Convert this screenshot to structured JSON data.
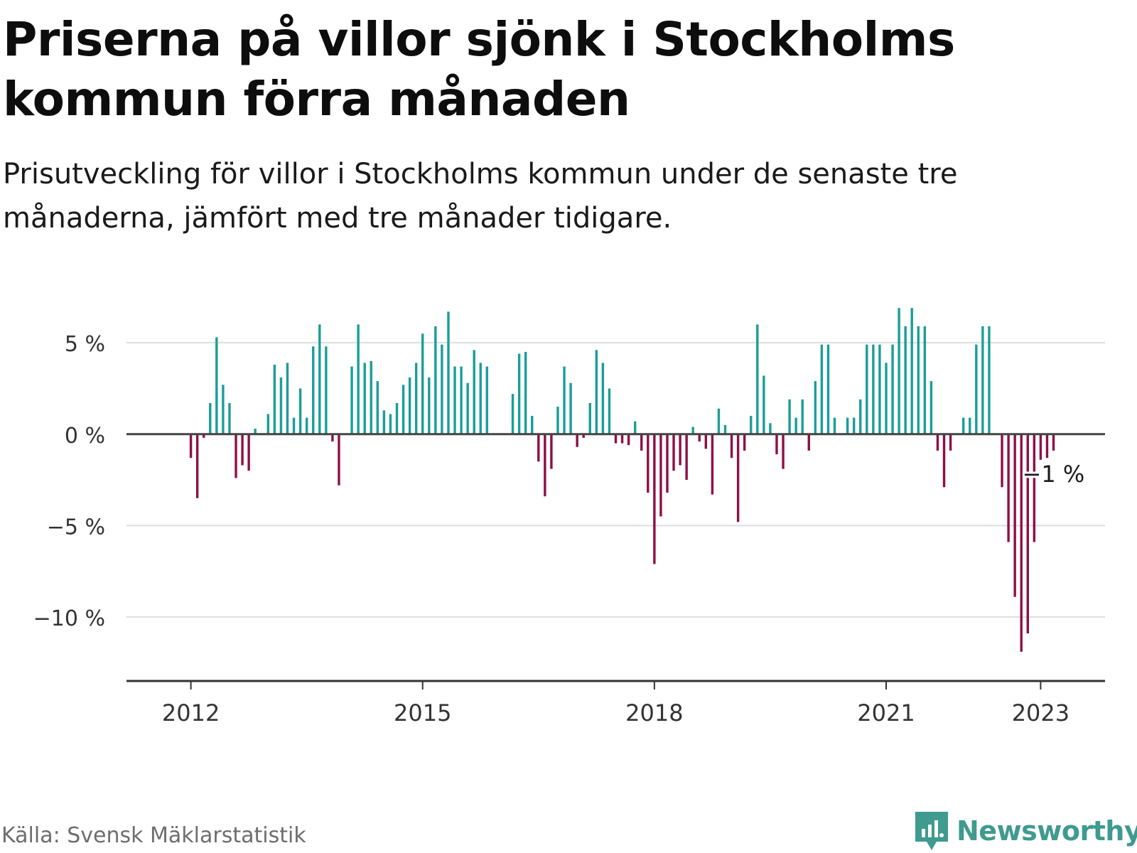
{
  "title": "Priserna på villor sjönk i Stockholms kommun förra månaden",
  "subtitle": "Prisutveckling för villor i Stockholms kommun under de senaste tre månaderna, jämfört med tre månader tidigare.",
  "source": "Källa: Svensk Mäklarstatistik",
  "logo": {
    "name": "Newsworthy",
    "icon": "newsworthy-bar-chart-icon",
    "color": "#3f9a8f"
  },
  "chart_data": {
    "type": "bar",
    "x_unit": "month",
    "y_unit": "%",
    "ylim": [
      -13.5,
      8
    ],
    "xlim": [
      "2011-03",
      "2023-11"
    ],
    "yticks": [
      {
        "value": 5,
        "label": "5 %"
      },
      {
        "value": 0,
        "label": "0 %"
      },
      {
        "value": -5,
        "label": "−5 %"
      },
      {
        "value": -10,
        "label": "−10 %"
      }
    ],
    "xticks": [
      {
        "date": "2012-01",
        "label": "2012"
      },
      {
        "date": "2015-01",
        "label": "2015"
      },
      {
        "date": "2018-01",
        "label": "2018"
      },
      {
        "date": "2021-01",
        "label": "2021"
      },
      {
        "date": "2023-01",
        "label": "2023"
      }
    ],
    "grid": true,
    "colors": {
      "positive": "#1a9e96",
      "negative": "#8e0f46",
      "zero_line": "#444444",
      "grid": "#dddddd",
      "axis": "#333333"
    },
    "annotation": {
      "date": "2023-03",
      "value": -0.9,
      "label": "−1 %"
    },
    "data": [
      [
        "2012-01",
        -1.3
      ],
      [
        "2012-02",
        -3.5
      ],
      [
        "2012-03",
        -0.2
      ],
      [
        "2012-04",
        1.7
      ],
      [
        "2012-05",
        5.3
      ],
      [
        "2012-06",
        2.7
      ],
      [
        "2012-07",
        1.7
      ],
      [
        "2012-08",
        -2.4
      ],
      [
        "2012-09",
        -1.7
      ],
      [
        "2012-10",
        -2.0
      ],
      [
        "2012-11",
        0.3
      ],
      [
        "2012-12",
        0.0
      ],
      [
        "2013-01",
        1.1
      ],
      [
        "2013-02",
        3.8
      ],
      [
        "2013-03",
        3.1
      ],
      [
        "2013-04",
        3.9
      ],
      [
        "2013-05",
        0.9
      ],
      [
        "2013-06",
        2.5
      ],
      [
        "2013-07",
        0.9
      ],
      [
        "2013-08",
        4.8
      ],
      [
        "2013-09",
        6.0
      ],
      [
        "2013-10",
        4.8
      ],
      [
        "2013-11",
        -0.4
      ],
      [
        "2013-12",
        -2.8
      ],
      [
        "2014-01",
        0.0
      ],
      [
        "2014-02",
        3.7
      ],
      [
        "2014-03",
        6.0
      ],
      [
        "2014-04",
        3.9
      ],
      [
        "2014-05",
        4.0
      ],
      [
        "2014-06",
        2.9
      ],
      [
        "2014-07",
        1.3
      ],
      [
        "2014-08",
        1.1
      ],
      [
        "2014-09",
        1.7
      ],
      [
        "2014-10",
        2.7
      ],
      [
        "2014-11",
        3.1
      ],
      [
        "2014-12",
        3.9
      ],
      [
        "2015-01",
        5.5
      ],
      [
        "2015-02",
        3.1
      ],
      [
        "2015-03",
        5.9
      ],
      [
        "2015-04",
        4.9
      ],
      [
        "2015-05",
        6.7
      ],
      [
        "2015-06",
        3.7
      ],
      [
        "2015-07",
        3.7
      ],
      [
        "2015-08",
        2.8
      ],
      [
        "2015-09",
        4.6
      ],
      [
        "2015-10",
        3.9
      ],
      [
        "2015-11",
        3.7
      ],
      [
        "2015-12",
        0.0
      ],
      [
        "2016-01",
        0.0
      ],
      [
        "2016-02",
        0.0
      ],
      [
        "2016-03",
        2.2
      ],
      [
        "2016-04",
        4.4
      ],
      [
        "2016-05",
        4.5
      ],
      [
        "2016-06",
        1.0
      ],
      [
        "2016-07",
        -1.5
      ],
      [
        "2016-08",
        -3.4
      ],
      [
        "2016-09",
        -1.9
      ],
      [
        "2016-10",
        1.5
      ],
      [
        "2016-11",
        3.7
      ],
      [
        "2016-12",
        2.8
      ],
      [
        "2017-01",
        -0.7
      ],
      [
        "2017-02",
        -0.2
      ],
      [
        "2017-03",
        1.7
      ],
      [
        "2017-04",
        4.6
      ],
      [
        "2017-05",
        3.9
      ],
      [
        "2017-06",
        2.5
      ],
      [
        "2017-07",
        -0.5
      ],
      [
        "2017-08",
        -0.5
      ],
      [
        "2017-09",
        -0.6
      ],
      [
        "2017-10",
        0.7
      ],
      [
        "2017-11",
        -0.9
      ],
      [
        "2017-12",
        -3.2
      ],
      [
        "2018-01",
        -7.1
      ],
      [
        "2018-02",
        -4.5
      ],
      [
        "2018-03",
        -3.2
      ],
      [
        "2018-04",
        -2.0
      ],
      [
        "2018-05",
        -1.7
      ],
      [
        "2018-06",
        -2.5
      ],
      [
        "2018-07",
        0.4
      ],
      [
        "2018-08",
        -0.4
      ],
      [
        "2018-09",
        -0.8
      ],
      [
        "2018-10",
        -3.3
      ],
      [
        "2018-11",
        1.4
      ],
      [
        "2018-12",
        0.5
      ],
      [
        "2019-01",
        -1.3
      ],
      [
        "2019-02",
        -4.8
      ],
      [
        "2019-03",
        -0.9
      ],
      [
        "2019-04",
        1.0
      ],
      [
        "2019-05",
        6.0
      ],
      [
        "2019-06",
        3.2
      ],
      [
        "2019-07",
        0.6
      ],
      [
        "2019-08",
        -1.1
      ],
      [
        "2019-09",
        -1.9
      ],
      [
        "2019-10",
        1.9
      ],
      [
        "2019-11",
        0.9
      ],
      [
        "2019-12",
        1.9
      ],
      [
        "2020-01",
        -0.9
      ],
      [
        "2020-02",
        2.9
      ],
      [
        "2020-03",
        4.9
      ],
      [
        "2020-04",
        4.9
      ],
      [
        "2020-05",
        0.9
      ],
      [
        "2020-06",
        0.0
      ],
      [
        "2020-07",
        0.9
      ],
      [
        "2020-08",
        0.9
      ],
      [
        "2020-09",
        1.9
      ],
      [
        "2020-10",
        4.9
      ],
      [
        "2020-11",
        4.9
      ],
      [
        "2020-12",
        4.9
      ],
      [
        "2021-01",
        3.9
      ],
      [
        "2021-02",
        4.9
      ],
      [
        "2021-03",
        6.9
      ],
      [
        "2021-04",
        5.9
      ],
      [
        "2021-05",
        6.9
      ],
      [
        "2021-06",
        5.9
      ],
      [
        "2021-07",
        5.9
      ],
      [
        "2021-08",
        2.9
      ],
      [
        "2021-09",
        -0.9
      ],
      [
        "2021-10",
        -2.9
      ],
      [
        "2021-11",
        -0.9
      ],
      [
        "2021-12",
        0.0
      ],
      [
        "2022-01",
        0.9
      ],
      [
        "2022-02",
        0.9
      ],
      [
        "2022-03",
        4.9
      ],
      [
        "2022-04",
        5.9
      ],
      [
        "2022-05",
        5.9
      ],
      [
        "2022-06",
        0.0
      ],
      [
        "2022-07",
        -2.9
      ],
      [
        "2022-08",
        -5.9
      ],
      [
        "2022-09",
        -8.9
      ],
      [
        "2022-10",
        -11.9
      ],
      [
        "2022-11",
        -10.9
      ],
      [
        "2022-12",
        -5.9
      ],
      [
        "2023-01",
        -1.4
      ],
      [
        "2023-02",
        -1.3
      ],
      [
        "2023-03",
        -0.9
      ]
    ]
  }
}
